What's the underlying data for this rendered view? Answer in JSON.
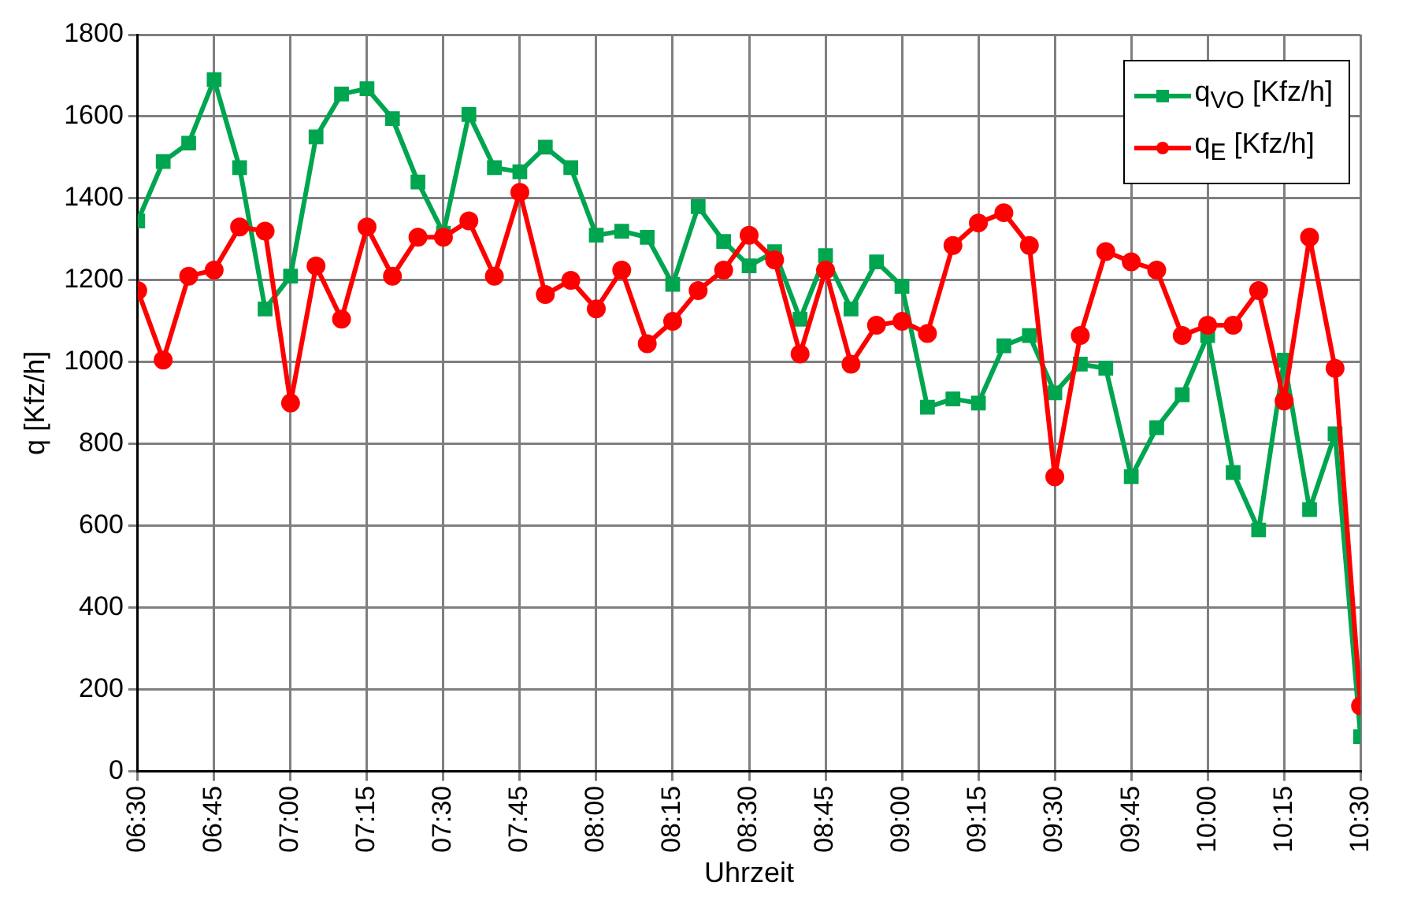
{
  "chart_data": {
    "type": "line",
    "xlabel": "Uhrzeit",
    "ylabel": "q [Kfz/h]",
    "x": [
      6.5,
      6.5833,
      6.6667,
      6.75,
      6.8333,
      6.9167,
      7,
      7.0833,
      7.1667,
      7.25,
      7.3333,
      7.4167,
      7.5,
      7.5833,
      7.6667,
      7.75,
      7.8333,
      7.9167,
      8,
      8.0833,
      8.1667,
      8.25,
      8.3333,
      8.4167,
      8.5,
      8.5833,
      8.6667,
      8.75,
      8.8333,
      8.9167,
      9,
      9.0833,
      9.1667,
      9.25,
      9.3333,
      9.4167,
      9.5,
      9.5833,
      9.6667,
      9.75,
      9.8333,
      9.9167,
      10,
      10.0833,
      10.1667,
      10.25,
      10.3333,
      10.4167,
      10.5
    ],
    "series": [
      {
        "name": "q$_{VO}$ [Kfz/h]",
        "color": "#00a550",
        "marker": "square",
        "values": [
          1345,
          1490,
          1535,
          1690,
          1475,
          1130,
          1210,
          1550,
          1655,
          1668,
          1595,
          1440,
          1315,
          1605,
          1475,
          1465,
          1525,
          1475,
          1310,
          1320,
          1305,
          1190,
          1380,
          1295,
          1235,
          1270,
          1105,
          1260,
          1130,
          1245,
          1185,
          890,
          910,
          900,
          1040,
          1065,
          925,
          995,
          985,
          720,
          840,
          920,
          1065,
          730,
          590,
          1005,
          640,
          825,
          85
        ]
      },
      {
        "name": "q$_{E}$ [Kfz/h]",
        "color": "#ff0000",
        "marker": "circle",
        "values": [
          1175,
          1005,
          1210,
          1225,
          1330,
          1320,
          900,
          1235,
          1105,
          1330,
          1210,
          1305,
          1305,
          1345,
          1210,
          1415,
          1165,
          1200,
          1130,
          1225,
          1045,
          1100,
          1175,
          1225,
          1310,
          1250,
          1020,
          1225,
          995,
          1090,
          1100,
          1070,
          1285,
          1340,
          1365,
          1285,
          720,
          1065,
          1270,
          1245,
          1225,
          1065,
          1090,
          1090,
          1175,
          905,
          1305,
          985,
          160
        ]
      }
    ],
    "xlim": [
      6.5,
      10.5
    ],
    "xticks": [
      {
        "value": 6.5,
        "label": "06:30"
      },
      {
        "value": 6.75,
        "label": "06:45"
      },
      {
        "value": 7,
        "label": "07:00"
      },
      {
        "value": 7.25,
        "label": "07:15"
      },
      {
        "value": 7.5,
        "label": "07:30"
      },
      {
        "value": 7.75,
        "label": "07:45"
      },
      {
        "value": 8,
        "label": "08:00"
      },
      {
        "value": 8.25,
        "label": "08:15"
      },
      {
        "value": 8.5,
        "label": "08:30"
      },
      {
        "value": 8.75,
        "label": "08:45"
      },
      {
        "value": 9,
        "label": "09:00"
      },
      {
        "value": 9.25,
        "label": "09:15"
      },
      {
        "value": 9.5,
        "label": "09:30"
      },
      {
        "value": 9.75,
        "label": "09:45"
      },
      {
        "value": 10,
        "label": "10:00"
      },
      {
        "value": 10.25,
        "label": "10:15"
      },
      {
        "value": 10.5,
        "label": "10:30"
      }
    ],
    "ylim": [
      0,
      1800
    ],
    "yticks": [
      0,
      200,
      400,
      600,
      800,
      1000,
      1200,
      1400,
      1600,
      1800
    ],
    "grid": true,
    "legend": "top right",
    "line_style": "solid"
  }
}
